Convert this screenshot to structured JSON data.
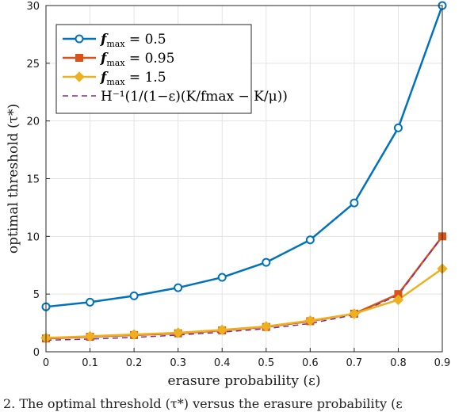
{
  "chart_data": {
    "type": "line",
    "xlabel": "erasure probability (ε)",
    "ylabel": "optimal threshold (τ*)",
    "xlim": [
      0,
      0.9
    ],
    "ylim": [
      0,
      30
    ],
    "x_ticks": [
      "0",
      "0.1",
      "0.2",
      "0.3",
      "0.4",
      "0.5",
      "0.6",
      "0.7",
      "0.8",
      "0.9"
    ],
    "y_ticks": [
      "0",
      "5",
      "10",
      "15",
      "20",
      "25",
      "30"
    ],
    "grid": true,
    "legend_position": "top-left",
    "x": [
      0,
      0.1,
      0.2,
      0.3,
      0.4,
      0.5,
      0.6,
      0.7,
      0.8,
      0.9
    ],
    "series": [
      {
        "name": "f_max = 0.5",
        "legend_symbol": "f",
        "legend_sub": "max",
        "legend_rhs": " = 0.5",
        "color": "#0072BD",
        "marker": "circle",
        "dash": "solid",
        "values": [
          3.9,
          4.3,
          4.85,
          5.55,
          6.45,
          7.75,
          9.7,
          12.9,
          19.4,
          30.0
        ]
      },
      {
        "name": "f_max = 0.95",
        "legend_symbol": "f",
        "legend_sub": "max",
        "legend_rhs": " = 0.95",
        "color": "#D95319",
        "marker": "square",
        "dash": "solid",
        "values": [
          1.15,
          1.3,
          1.45,
          1.6,
          1.85,
          2.15,
          2.65,
          3.3,
          5.0,
          10.0
        ]
      },
      {
        "name": "f_max = 1.5",
        "legend_symbol": "f",
        "legend_sub": "max",
        "legend_rhs": " = 1.5",
        "color": "#EDB120",
        "marker": "diamond",
        "dash": "solid",
        "values": [
          1.2,
          1.35,
          1.5,
          1.65,
          1.9,
          2.2,
          2.7,
          3.3,
          4.5,
          7.2
        ]
      },
      {
        "name": "H^{-1}(1/(1-ε)(K/f_max - K/μ))",
        "legend_label": "H⁻¹(1/(1−ε)(K/fmax − K/μ))",
        "color": "#7E2F8E",
        "marker": "none",
        "dash": "dashed",
        "values": [
          1.0,
          1.1,
          1.25,
          1.45,
          1.7,
          2.0,
          2.45,
          3.2,
          4.9,
          10.0
        ]
      }
    ]
  },
  "caption": "2.    The optimal threshold (τ*) versus the erasure probability (ε"
}
